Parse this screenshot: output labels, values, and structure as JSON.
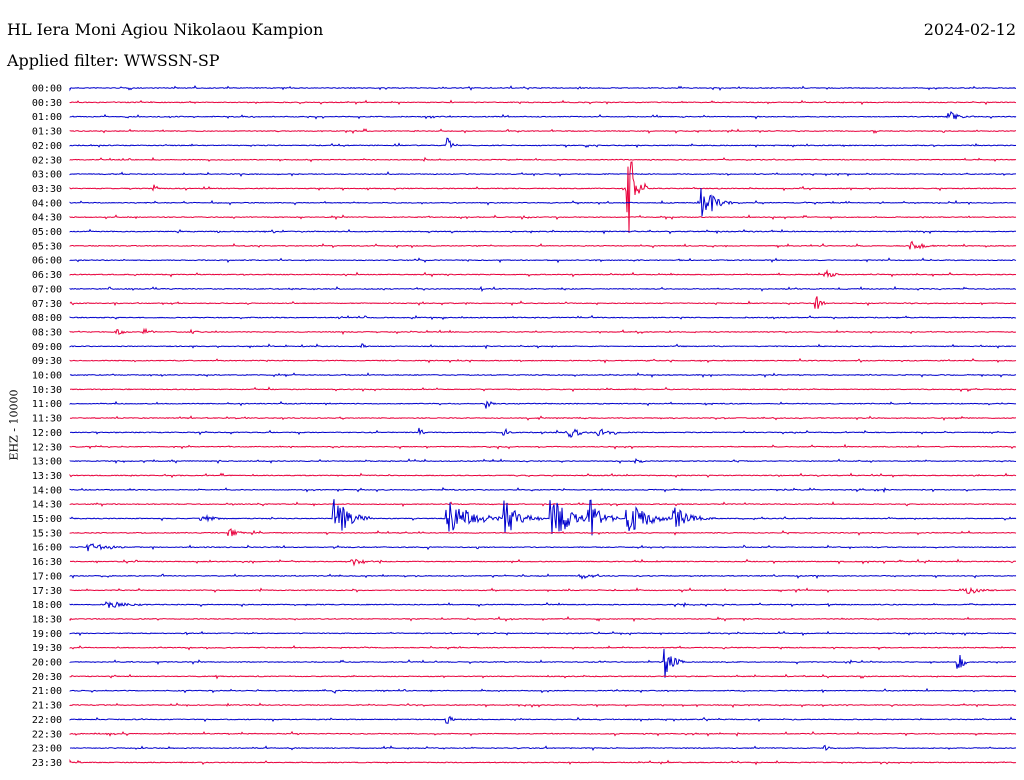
{
  "header": {
    "title": "HL Iera Moni Agiou Nikolaou Kampion",
    "date": "2024-02-12",
    "filter": "Applied filter: WWSSN-SP"
  },
  "chart_data": {
    "type": "line",
    "ylabel": "EHZ - 10000",
    "row_labels": [
      "00:00",
      "00:30",
      "01:00",
      "01:30",
      "02:00",
      "02:30",
      "03:00",
      "03:30",
      "04:00",
      "04:30",
      "05:00",
      "05:30",
      "06:00",
      "06:30",
      "07:00",
      "07:30",
      "08:00",
      "08:30",
      "09:00",
      "09:30",
      "10:00",
      "10:30",
      "11:00",
      "11:30",
      "12:00",
      "12:30",
      "13:00",
      "13:30",
      "14:00",
      "14:30",
      "15:00",
      "15:30",
      "16:00",
      "16:30",
      "17:00",
      "17:30",
      "18:00",
      "18:30",
      "19:00",
      "19:30",
      "20:00",
      "20:30",
      "21:00",
      "21:30",
      "22:00",
      "22:30",
      "23:00",
      "23:30"
    ],
    "series_colors": [
      "#0000cc",
      "#e8003c"
    ],
    "events": [
      {
        "row": 2,
        "pos": 0.93,
        "amp": 6,
        "dur": 0.02
      },
      {
        "row": 4,
        "pos": 0.4,
        "amp": 9,
        "dur": 0.01
      },
      {
        "row": 7,
        "pos": 0.09,
        "amp": 4,
        "dur": 0.005
      },
      {
        "row": 7,
        "pos": 0.59,
        "amp": 50,
        "dur": 0.02
      },
      {
        "row": 8,
        "pos": 0.67,
        "amp": 18,
        "dur": 0.03
      },
      {
        "row": 11,
        "pos": 0.89,
        "amp": 5,
        "dur": 0.03
      },
      {
        "row": 13,
        "pos": 0.8,
        "amp": 4,
        "dur": 0.02
      },
      {
        "row": 15,
        "pos": 0.79,
        "amp": 8,
        "dur": 0.01
      },
      {
        "row": 17,
        "pos": 0.05,
        "amp": 3,
        "dur": 0.02
      },
      {
        "row": 17,
        "pos": 0.08,
        "amp": 3,
        "dur": 0.02
      },
      {
        "row": 17,
        "pos": 0.13,
        "amp": 2,
        "dur": 0.02
      },
      {
        "row": 18,
        "pos": 0.31,
        "amp": 3,
        "dur": 0.01
      },
      {
        "row": 22,
        "pos": 0.44,
        "amp": 5,
        "dur": 0.01
      },
      {
        "row": 24,
        "pos": 0.37,
        "amp": 6,
        "dur": 0.005
      },
      {
        "row": 24,
        "pos": 0.46,
        "amp": 4,
        "dur": 0.01
      },
      {
        "row": 24,
        "pos": 0.53,
        "amp": 5,
        "dur": 0.03
      },
      {
        "row": 24,
        "pos": 0.56,
        "amp": 4,
        "dur": 0.03
      },
      {
        "row": 26,
        "pos": 0.6,
        "amp": 3,
        "dur": 0.01
      },
      {
        "row": 30,
        "pos": 0.28,
        "amp": 22,
        "dur": 0.04
      },
      {
        "row": 30,
        "pos": 0.4,
        "amp": 20,
        "dur": 0.06
      },
      {
        "row": 30,
        "pos": 0.46,
        "amp": 18,
        "dur": 0.04
      },
      {
        "row": 30,
        "pos": 0.51,
        "amp": 26,
        "dur": 0.04
      },
      {
        "row": 30,
        "pos": 0.55,
        "amp": 20,
        "dur": 0.03
      },
      {
        "row": 30,
        "pos": 0.59,
        "amp": 18,
        "dur": 0.05
      },
      {
        "row": 30,
        "pos": 0.64,
        "amp": 12,
        "dur": 0.04
      },
      {
        "row": 30,
        "pos": 0.14,
        "amp": 4,
        "dur": 0.03
      },
      {
        "row": 31,
        "pos": 0.17,
        "amp": 4,
        "dur": 0.02
      },
      {
        "row": 32,
        "pos": 0.02,
        "amp": 4,
        "dur": 0.06
      },
      {
        "row": 33,
        "pos": 0.3,
        "amp": 4,
        "dur": 0.03
      },
      {
        "row": 34,
        "pos": 0.54,
        "amp": 3,
        "dur": 0.04
      },
      {
        "row": 35,
        "pos": 0.95,
        "amp": 4,
        "dur": 0.04
      },
      {
        "row": 36,
        "pos": 0.04,
        "amp": 4,
        "dur": 0.06
      },
      {
        "row": 40,
        "pos": 0.63,
        "amp": 16,
        "dur": 0.02
      },
      {
        "row": 40,
        "pos": 0.94,
        "amp": 10,
        "dur": 0.01
      },
      {
        "row": 42,
        "pos": 0.28,
        "amp": 3,
        "dur": 0.005
      },
      {
        "row": 44,
        "pos": 0.4,
        "amp": 4,
        "dur": 0.01
      },
      {
        "row": 46,
        "pos": 0.8,
        "amp": 3,
        "dur": 0.005
      }
    ]
  }
}
